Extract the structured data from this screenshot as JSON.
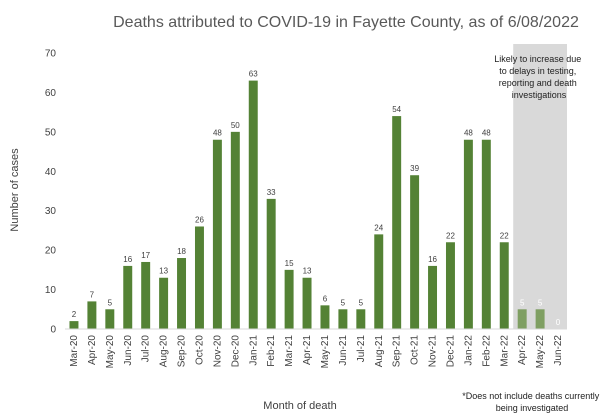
{
  "chart_data": {
    "type": "bar",
    "title": "Deaths attributed to COVID-19 in Fayette County, as of 6/08/2022",
    "xlabel": "Month of death",
    "ylabel": "Number of cases",
    "ylim": [
      0,
      70
    ],
    "yticks": [
      0,
      10,
      20,
      30,
      40,
      50,
      60,
      70
    ],
    "grid": false,
    "categories": [
      "Mar-20",
      "Apr-20",
      "May-20",
      "Jun-20",
      "Jul-20",
      "Aug-20",
      "Sep-20",
      "Oct-20",
      "Nov-20",
      "Dec-20",
      "Jan-21",
      "Feb-21",
      "Mar-21",
      "Apr-21",
      "May-21",
      "Jun-21",
      "Jul-21",
      "Aug-21",
      "Sep-21",
      "Oct-21",
      "Nov-21",
      "Dec-21",
      "Jan-22",
      "Feb-22",
      "Mar-22",
      "Apr-22",
      "May-22",
      "Jun-22"
    ],
    "values": [
      2,
      7,
      5,
      16,
      17,
      13,
      18,
      26,
      48,
      50,
      63,
      33,
      15,
      13,
      6,
      5,
      5,
      24,
      54,
      39,
      16,
      22,
      48,
      48,
      22,
      5,
      5,
      0
    ],
    "bar_color": "#548235",
    "shaded_bar_color": "#7f9f62",
    "shaded_region": {
      "categories": [
        "Apr-22",
        "May-22",
        "Jun-22"
      ],
      "color": "#d9d9d9",
      "note_lines": [
        "Likely to increase due",
        "to delays in testing,",
        "reporting and death",
        "investigations"
      ]
    },
    "footnote_lines": [
      "*Does not include deaths currently",
      "being investigated"
    ]
  }
}
